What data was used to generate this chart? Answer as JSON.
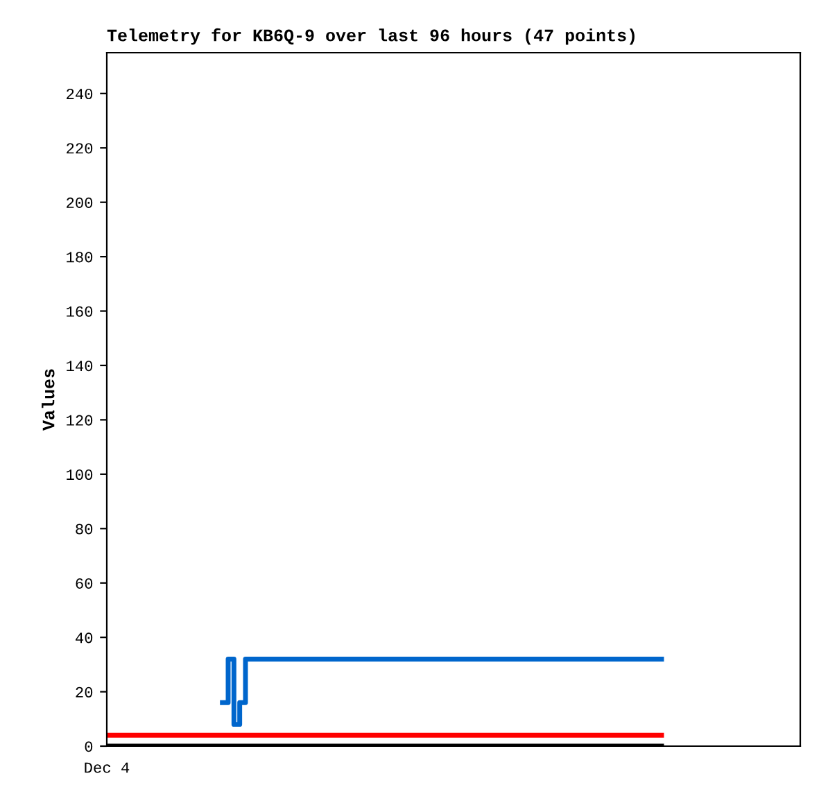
{
  "chart_data": {
    "type": "line",
    "title": "Telemetry for KB6Q-9 over last 96 hours (47 points)",
    "ylabel": "Values",
    "categories": [
      "Dec 4",
      null,
      null,
      null,
      null,
      null,
      null,
      null,
      null,
      null,
      null,
      null,
      null,
      null,
      null,
      null,
      null,
      null,
      null,
      null,
      null,
      null,
      null,
      null,
      null,
      null,
      null,
      null,
      null,
      null,
      null,
      null,
      null,
      null,
      null,
      null,
      null,
      null,
      null,
      null,
      null,
      null,
      null,
      null,
      null,
      null,
      null,
      null,
      null,
      null,
      null,
      null,
      null,
      null,
      null,
      null,
      null,
      null,
      null,
      null,
      null,
      null,
      null,
      null,
      null,
      null,
      null,
      null,
      null,
      null,
      null,
      null,
      null,
      null,
      null,
      null,
      null,
      null,
      null,
      null,
      null,
      null,
      null,
      null,
      null,
      null,
      null,
      null,
      null,
      null,
      null,
      null,
      null,
      null,
      null,
      null,
      null,
      null,
      null,
      null,
      null,
      null,
      null,
      null,
      null,
      null,
      null,
      null,
      null,
      null,
      null,
      null,
      null,
      null,
      null,
      null,
      null,
      null,
      null,
      null,
      null
    ],
    "ylim": [
      0,
      255
    ],
    "yticks": [
      0,
      20,
      40,
      60,
      80,
      100,
      120,
      140,
      160,
      180,
      200,
      220,
      240
    ],
    "grid": false,
    "legend": false,
    "series": [
      {
        "type": "line",
        "color": "#000000",
        "values": [
          0,
          0,
          0,
          0,
          0,
          0,
          0,
          0,
          0,
          0,
          0,
          0,
          0,
          0,
          0,
          0,
          0,
          0,
          0,
          0,
          0,
          0,
          0,
          0,
          0,
          0,
          0,
          0,
          0,
          0,
          0,
          0,
          0,
          0,
          0,
          0,
          0,
          0,
          0,
          0,
          0,
          0,
          0,
          0,
          0,
          0,
          0,
          0,
          0,
          0,
          0,
          0,
          0,
          0,
          0,
          0,
          0,
          0,
          0,
          0,
          0,
          0,
          0,
          0,
          0,
          0,
          0,
          0,
          0,
          0,
          0,
          0,
          0,
          0,
          0,
          0,
          0,
          0,
          0,
          0,
          0,
          0,
          0,
          0,
          0,
          0,
          0,
          0,
          0,
          0,
          0,
          0,
          0,
          0,
          0,
          0,
          0,
          null,
          null,
          null,
          null,
          null,
          null,
          null,
          null,
          null,
          null,
          null,
          null,
          null,
          null,
          null,
          null,
          null,
          null,
          null,
          null,
          null,
          null,
          null,
          null
        ]
      },
      {
        "type": "line",
        "color": "#ff0000",
        "values": [
          4,
          4,
          4,
          4,
          4,
          4,
          4,
          4,
          4,
          4,
          4,
          4,
          4,
          4,
          4,
          4,
          4,
          4,
          4,
          4,
          4,
          4,
          4,
          4,
          4,
          4,
          4,
          4,
          4,
          4,
          4,
          4,
          4,
          4,
          4,
          4,
          4,
          4,
          4,
          4,
          4,
          4,
          4,
          4,
          4,
          4,
          4,
          4,
          4,
          4,
          4,
          4,
          4,
          4,
          4,
          4,
          4,
          4,
          4,
          4,
          4,
          4,
          4,
          4,
          4,
          4,
          4,
          4,
          4,
          4,
          4,
          4,
          4,
          4,
          4,
          4,
          4,
          4,
          4,
          4,
          4,
          4,
          4,
          4,
          4,
          4,
          4,
          4,
          4,
          4,
          4,
          4,
          4,
          4,
          4,
          4,
          4,
          null,
          null,
          null,
          null,
          null,
          null,
          null,
          null,
          null,
          null,
          null,
          null,
          null,
          null,
          null,
          null,
          null,
          null,
          null,
          null,
          null,
          null,
          null,
          null
        ]
      },
      {
        "type": "step",
        "color": "#0066cc",
        "values": [
          null,
          null,
          null,
          null,
          null,
          null,
          null,
          null,
          null,
          null,
          null,
          null,
          null,
          null,
          null,
          null,
          null,
          null,
          null,
          null,
          16,
          32,
          8,
          16,
          32,
          32,
          32,
          32,
          32,
          32,
          32,
          32,
          32,
          32,
          32,
          32,
          32,
          32,
          32,
          32,
          32,
          32,
          32,
          32,
          32,
          32,
          32,
          32,
          32,
          32,
          32,
          32,
          32,
          32,
          32,
          32,
          32,
          32,
          32,
          32,
          32,
          32,
          32,
          32,
          32,
          32,
          32,
          32,
          32,
          32,
          32,
          32,
          32,
          32,
          32,
          32,
          32,
          32,
          32,
          32,
          32,
          32,
          32,
          32,
          32,
          32,
          32,
          32,
          32,
          32,
          32,
          32,
          32,
          32,
          32,
          32,
          32,
          null,
          null,
          null,
          null,
          null,
          null,
          null,
          null,
          null,
          null,
          null,
          null,
          null,
          null,
          null,
          null,
          null,
          null,
          null,
          null,
          null,
          null,
          null,
          null
        ]
      }
    ]
  }
}
